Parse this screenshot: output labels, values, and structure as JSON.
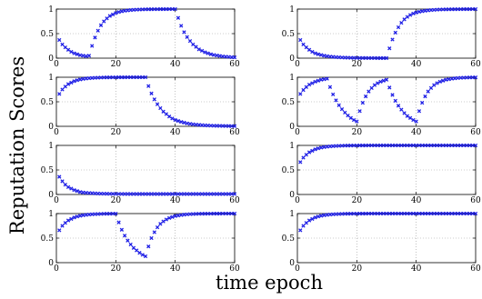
{
  "chart_data": {
    "type": "scatter",
    "ylabel": "Reputation Scores",
    "xlabel": "time epoch",
    "marker": "x",
    "color": "#1f1fe6",
    "grid": true,
    "layout": "4 rows x 2 columns of panels",
    "panels": [
      {
        "xlim": [
          0,
          60
        ],
        "ylim": [
          0,
          1
        ],
        "xticks": [
          "0",
          "20",
          "40",
          "60"
        ],
        "yticks": [
          "0",
          "0.5",
          "1"
        ],
        "x": [
          1,
          2,
          3,
          4,
          5,
          6,
          7,
          8,
          9,
          10,
          11,
          12,
          13,
          14,
          15,
          16,
          17,
          18,
          19,
          20,
          21,
          22,
          23,
          24,
          25,
          26,
          27,
          28,
          29,
          30,
          31,
          32,
          33,
          34,
          35,
          36,
          37,
          38,
          39,
          40,
          41,
          42,
          43,
          44,
          45,
          46,
          47,
          48,
          49,
          50,
          51,
          52,
          53,
          54,
          55,
          56,
          57,
          58,
          59,
          60
        ],
        "y": [
          0.37,
          0.28,
          0.22,
          0.17,
          0.13,
          0.1,
          0.08,
          0.06,
          0.05,
          0.04,
          0.05,
          0.25,
          0.42,
          0.56,
          0.67,
          0.75,
          0.81,
          0.86,
          0.89,
          0.92,
          0.94,
          0.955,
          0.965,
          0.973,
          0.98,
          0.985,
          0.988,
          0.991,
          0.993,
          0.995,
          0.996,
          0.997,
          0.998,
          0.998,
          0.999,
          0.999,
          0.999,
          1.0,
          1.0,
          1.0,
          0.82,
          0.66,
          0.53,
          0.43,
          0.35,
          0.28,
          0.23,
          0.18,
          0.15,
          0.12,
          0.1,
          0.08,
          0.065,
          0.055,
          0.045,
          0.037,
          0.03,
          0.025,
          0.02,
          0.017
        ]
      },
      {
        "xlim": [
          0,
          60
        ],
        "ylim": [
          0,
          1
        ],
        "xticks": [
          "0",
          "20",
          "40",
          "60"
        ],
        "yticks": [
          "0",
          "0.5",
          "1"
        ],
        "x": [
          1,
          2,
          3,
          4,
          5,
          6,
          7,
          8,
          9,
          10,
          11,
          12,
          13,
          14,
          15,
          16,
          17,
          18,
          19,
          20,
          21,
          22,
          23,
          24,
          25,
          26,
          27,
          28,
          29,
          30,
          31,
          32,
          33,
          34,
          35,
          36,
          37,
          38,
          39,
          40,
          41,
          42,
          43,
          44,
          45,
          46,
          47,
          48,
          49,
          50,
          51,
          52,
          53,
          54,
          55,
          56,
          57,
          58,
          59,
          60
        ],
        "y": [
          0.37,
          0.28,
          0.22,
          0.17,
          0.13,
          0.1,
          0.08,
          0.065,
          0.05,
          0.04,
          0.032,
          0.026,
          0.021,
          0.017,
          0.014,
          0.011,
          0.009,
          0.007,
          0.006,
          0.005,
          0.004,
          0.003,
          0.003,
          0.002,
          0.002,
          0.002,
          0.001,
          0.001,
          0.001,
          0.001,
          0.2,
          0.38,
          0.52,
          0.63,
          0.72,
          0.79,
          0.84,
          0.88,
          0.91,
          0.93,
          0.945,
          0.957,
          0.966,
          0.974,
          0.98,
          0.984,
          0.988,
          0.991,
          0.993,
          0.994,
          0.995,
          0.996,
          0.997,
          0.998,
          0.998,
          0.999,
          0.999,
          0.999,
          1.0,
          1.0
        ]
      },
      {
        "xlim": [
          0,
          60
        ],
        "ylim": [
          0,
          1
        ],
        "xticks": [
          "0",
          "20",
          "40",
          "60"
        ],
        "yticks": [
          "0",
          "0.5",
          "1"
        ],
        "x": [
          1,
          2,
          3,
          4,
          5,
          6,
          7,
          8,
          9,
          10,
          11,
          12,
          13,
          14,
          15,
          16,
          17,
          18,
          19,
          20,
          21,
          22,
          23,
          24,
          25,
          26,
          27,
          28,
          29,
          30,
          31,
          32,
          33,
          34,
          35,
          36,
          37,
          38,
          39,
          40,
          41,
          42,
          43,
          44,
          45,
          46,
          47,
          48,
          49,
          50,
          51,
          52,
          53,
          54,
          55,
          56,
          57,
          58,
          59,
          60
        ],
        "y": [
          0.66,
          0.75,
          0.81,
          0.86,
          0.89,
          0.92,
          0.94,
          0.955,
          0.966,
          0.974,
          0.98,
          0.985,
          0.988,
          0.991,
          0.993,
          0.995,
          0.996,
          0.997,
          0.998,
          0.998,
          0.999,
          0.999,
          0.999,
          1.0,
          1.0,
          1.0,
          1.0,
          1.0,
          1.0,
          1.0,
          0.82,
          0.67,
          0.55,
          0.45,
          0.37,
          0.3,
          0.25,
          0.2,
          0.16,
          0.13,
          0.11,
          0.09,
          0.075,
          0.06,
          0.05,
          0.042,
          0.035,
          0.029,
          0.024,
          0.02,
          0.017,
          0.014,
          0.012,
          0.01,
          0.009,
          0.008,
          0.007,
          0.006,
          0.005,
          0.004
        ]
      },
      {
        "xlim": [
          0,
          60
        ],
        "ylim": [
          0,
          1
        ],
        "xticks": [
          "0",
          "20",
          "40",
          "60"
        ],
        "yticks": [
          "0",
          "0.5",
          "1"
        ],
        "x": [
          1,
          2,
          3,
          4,
          5,
          6,
          7,
          8,
          9,
          10,
          11,
          12,
          13,
          14,
          15,
          16,
          17,
          18,
          19,
          20,
          21,
          22,
          23,
          24,
          25,
          26,
          27,
          28,
          29,
          30,
          31,
          32,
          33,
          34,
          35,
          36,
          37,
          38,
          39,
          40,
          41,
          42,
          43,
          44,
          45,
          46,
          47,
          48,
          49,
          50,
          51,
          52,
          53,
          54,
          55,
          56,
          57,
          58,
          59,
          60
        ],
        "y": [
          0.66,
          0.74,
          0.8,
          0.85,
          0.88,
          0.91,
          0.93,
          0.95,
          0.96,
          0.97,
          0.8,
          0.65,
          0.53,
          0.43,
          0.35,
          0.28,
          0.22,
          0.17,
          0.13,
          0.1,
          0.31,
          0.48,
          0.61,
          0.71,
          0.78,
          0.84,
          0.88,
          0.91,
          0.93,
          0.95,
          0.79,
          0.64,
          0.52,
          0.42,
          0.34,
          0.27,
          0.21,
          0.17,
          0.13,
          0.1,
          0.31,
          0.48,
          0.61,
          0.71,
          0.78,
          0.84,
          0.88,
          0.91,
          0.93,
          0.95,
          0.96,
          0.97,
          0.978,
          0.984,
          0.988,
          0.991,
          0.993,
          0.995,
          0.996,
          0.997
        ]
      },
      {
        "xlim": [
          0,
          60
        ],
        "ylim": [
          0,
          1
        ],
        "xticks": [
          "0",
          "20",
          "40",
          "60"
        ],
        "yticks": [
          "0",
          "0.5",
          "1"
        ],
        "x": [
          1,
          2,
          3,
          4,
          5,
          6,
          7,
          8,
          9,
          10,
          11,
          12,
          13,
          14,
          15,
          16,
          17,
          18,
          19,
          20,
          21,
          22,
          23,
          24,
          25,
          26,
          27,
          28,
          29,
          30,
          31,
          32,
          33,
          34,
          35,
          36,
          37,
          38,
          39,
          40,
          41,
          42,
          43,
          44,
          45,
          46,
          47,
          48,
          49,
          50,
          51,
          52,
          53,
          54,
          55,
          56,
          57,
          58,
          59,
          60
        ],
        "y": [
          0.36,
          0.27,
          0.2,
          0.15,
          0.12,
          0.09,
          0.07,
          0.05,
          0.04,
          0.035,
          0.03,
          0.026,
          0.023,
          0.02,
          0.018,
          0.016,
          0.015,
          0.014,
          0.013,
          0.012,
          0.012,
          0.011,
          0.011,
          0.011,
          0.01,
          0.01,
          0.01,
          0.01,
          0.01,
          0.01,
          0.01,
          0.01,
          0.01,
          0.01,
          0.01,
          0.01,
          0.01,
          0.01,
          0.01,
          0.01,
          0.01,
          0.01,
          0.01,
          0.01,
          0.01,
          0.01,
          0.01,
          0.01,
          0.01,
          0.01,
          0.01,
          0.01,
          0.01,
          0.01,
          0.01,
          0.01,
          0.01,
          0.01,
          0.01,
          0.01
        ]
      },
      {
        "xlim": [
          0,
          60
        ],
        "ylim": [
          0,
          1
        ],
        "xticks": [
          "0",
          "20",
          "40",
          "60"
        ],
        "yticks": [
          "0",
          "0.5",
          "1"
        ],
        "x": [
          1,
          2,
          3,
          4,
          5,
          6,
          7,
          8,
          9,
          10,
          11,
          12,
          13,
          14,
          15,
          16,
          17,
          18,
          19,
          20,
          21,
          22,
          23,
          24,
          25,
          26,
          27,
          28,
          29,
          30,
          31,
          32,
          33,
          34,
          35,
          36,
          37,
          38,
          39,
          40,
          41,
          42,
          43,
          44,
          45,
          46,
          47,
          48,
          49,
          50,
          51,
          52,
          53,
          54,
          55,
          56,
          57,
          58,
          59,
          60
        ],
        "y": [
          0.66,
          0.75,
          0.81,
          0.86,
          0.89,
          0.92,
          0.94,
          0.955,
          0.966,
          0.974,
          0.98,
          0.985,
          0.988,
          0.991,
          0.993,
          0.995,
          0.996,
          0.997,
          0.998,
          0.998,
          0.999,
          0.999,
          0.999,
          1.0,
          1.0,
          1.0,
          1.0,
          1.0,
          1.0,
          1.0,
          1.0,
          1.0,
          1.0,
          1.0,
          1.0,
          1.0,
          1.0,
          1.0,
          1.0,
          1.0,
          1.0,
          1.0,
          1.0,
          1.0,
          1.0,
          1.0,
          1.0,
          1.0,
          1.0,
          1.0,
          1.0,
          1.0,
          1.0,
          1.0,
          1.0,
          1.0,
          1.0,
          1.0,
          1.0,
          1.0
        ]
      },
      {
        "xlim": [
          0,
          60
        ],
        "ylim": [
          0,
          1
        ],
        "xticks": [
          "0",
          "20",
          "40",
          "60"
        ],
        "yticks": [
          "0",
          "0.5",
          "1"
        ],
        "x": [
          1,
          2,
          3,
          4,
          5,
          6,
          7,
          8,
          9,
          10,
          11,
          12,
          13,
          14,
          15,
          16,
          17,
          18,
          19,
          20,
          21,
          22,
          23,
          24,
          25,
          26,
          27,
          28,
          29,
          30,
          31,
          32,
          33,
          34,
          35,
          36,
          37,
          38,
          39,
          40,
          41,
          42,
          43,
          44,
          45,
          46,
          47,
          48,
          49,
          50,
          51,
          52,
          53,
          54,
          55,
          56,
          57,
          58,
          59,
          60
        ],
        "y": [
          0.66,
          0.75,
          0.81,
          0.86,
          0.89,
          0.92,
          0.94,
          0.955,
          0.966,
          0.974,
          0.98,
          0.985,
          0.988,
          0.991,
          0.993,
          0.995,
          0.996,
          0.997,
          0.998,
          0.998,
          0.82,
          0.67,
          0.55,
          0.45,
          0.37,
          0.3,
          0.25,
          0.2,
          0.16,
          0.13,
          0.33,
          0.5,
          0.62,
          0.72,
          0.79,
          0.84,
          0.88,
          0.91,
          0.93,
          0.95,
          0.96,
          0.97,
          0.978,
          0.984,
          0.988,
          0.991,
          0.993,
          0.995,
          0.996,
          0.997,
          0.998,
          0.998,
          0.999,
          0.999,
          0.999,
          1.0,
          1.0,
          1.0,
          1.0,
          1.0
        ]
      },
      {
        "xlim": [
          0,
          60
        ],
        "ylim": [
          0,
          1
        ],
        "xticks": [
          "0",
          "20",
          "40",
          "60"
        ],
        "yticks": [
          "0",
          "0.5",
          "1"
        ],
        "x": [
          1,
          2,
          3,
          4,
          5,
          6,
          7,
          8,
          9,
          10,
          11,
          12,
          13,
          14,
          15,
          16,
          17,
          18,
          19,
          20,
          21,
          22,
          23,
          24,
          25,
          26,
          27,
          28,
          29,
          30,
          31,
          32,
          33,
          34,
          35,
          36,
          37,
          38,
          39,
          40,
          41,
          42,
          43,
          44,
          45,
          46,
          47,
          48,
          49,
          50,
          51,
          52,
          53,
          54,
          55,
          56,
          57,
          58,
          59,
          60
        ],
        "y": [
          0.66,
          0.75,
          0.81,
          0.86,
          0.89,
          0.92,
          0.94,
          0.955,
          0.966,
          0.974,
          0.98,
          0.985,
          0.988,
          0.991,
          0.993,
          0.995,
          0.996,
          0.997,
          0.998,
          0.998,
          0.999,
          0.999,
          0.999,
          1.0,
          1.0,
          1.0,
          1.0,
          1.0,
          1.0,
          1.0,
          1.0,
          1.0,
          1.0,
          1.0,
          1.0,
          1.0,
          1.0,
          1.0,
          1.0,
          1.0,
          1.0,
          1.0,
          1.0,
          1.0,
          1.0,
          1.0,
          1.0,
          1.0,
          1.0,
          1.0,
          1.0,
          1.0,
          1.0,
          1.0,
          1.0,
          1.0,
          1.0,
          1.0,
          1.0,
          1.0
        ]
      }
    ]
  }
}
